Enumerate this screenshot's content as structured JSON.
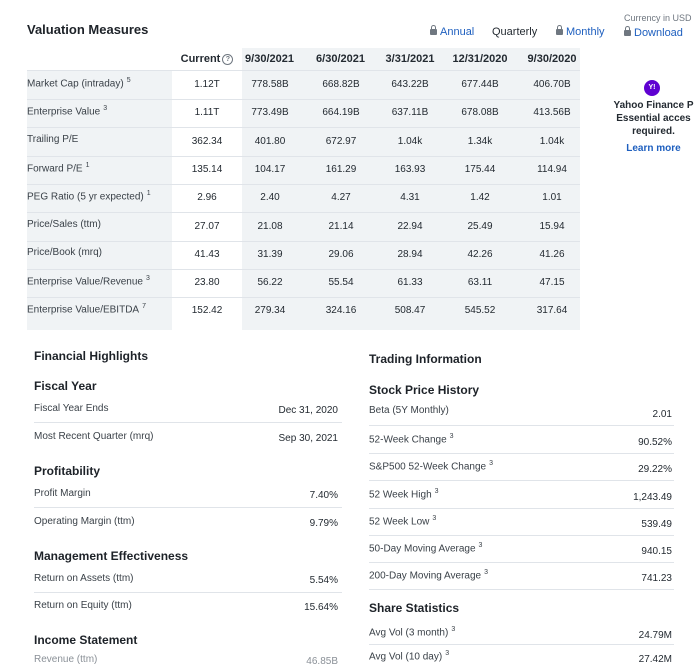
{
  "valuation": {
    "title": "Valuation Measures",
    "toggles": {
      "annual": "Annual",
      "quarterly": "Quarterly",
      "monthly": "Monthly"
    },
    "currency": "Currency in USD",
    "download": "Download",
    "columns": [
      "Current",
      "9/30/2021",
      "6/30/2021",
      "3/31/2021",
      "12/31/2020",
      "9/30/2020"
    ],
    "rows": [
      {
        "label": "Market Cap (intraday)",
        "sup": "5",
        "values": [
          "1.12T",
          "778.58B",
          "668.82B",
          "643.22B",
          "677.44B",
          "406.70B"
        ]
      },
      {
        "label": "Enterprise Value",
        "sup": "3",
        "values": [
          "1.11T",
          "773.49B",
          "664.19B",
          "637.11B",
          "678.08B",
          "413.56B"
        ]
      },
      {
        "label": "Trailing P/E",
        "sup": "",
        "values": [
          "362.34",
          "401.80",
          "672.97",
          "1.04k",
          "1.34k",
          "1.04k"
        ]
      },
      {
        "label": "Forward P/E",
        "sup": "1",
        "values": [
          "135.14",
          "104.17",
          "161.29",
          "163.93",
          "175.44",
          "114.94"
        ]
      },
      {
        "label": "PEG Ratio (5 yr expected)",
        "sup": "1",
        "values": [
          "2.96",
          "2.40",
          "4.27",
          "4.31",
          "1.42",
          "1.01"
        ]
      },
      {
        "label": "Price/Sales (ttm)",
        "sup": "",
        "values": [
          "27.07",
          "21.08",
          "21.14",
          "22.94",
          "25.49",
          "15.94"
        ]
      },
      {
        "label": "Price/Book (mrq)",
        "sup": "",
        "values": [
          "41.43",
          "31.39",
          "29.06",
          "28.94",
          "42.26",
          "41.26"
        ]
      },
      {
        "label": "Enterprise Value/Revenue",
        "sup": "3",
        "values": [
          "23.80",
          "56.22",
          "55.54",
          "61.33",
          "63.11",
          "47.15"
        ]
      },
      {
        "label": "Enterprise Value/EBITDA",
        "sup": "7",
        "values": [
          "152.42",
          "279.34",
          "324.16",
          "508.47",
          "545.52",
          "317.64"
        ]
      }
    ]
  },
  "promo": {
    "badge": "Y!",
    "line1": "Yahoo Finance P",
    "line2": "Essential acces",
    "line3": "required.",
    "link": "Learn more"
  },
  "financial": {
    "title": "Financial Highlights",
    "fiscal_year": {
      "title": "Fiscal Year",
      "rows": [
        {
          "label": "Fiscal Year Ends",
          "value": "Dec 31, 2020"
        },
        {
          "label": "Most Recent Quarter (mrq)",
          "value": "Sep 30, 2021"
        }
      ]
    },
    "profitability": {
      "title": "Profitability",
      "rows": [
        {
          "label": "Profit Margin",
          "value": "7.40%"
        },
        {
          "label": "Operating Margin (ttm)",
          "value": "9.79%"
        }
      ]
    },
    "management": {
      "title": "Management Effectiveness",
      "rows": [
        {
          "label": "Return on Assets (ttm)",
          "value": "5.54%"
        },
        {
          "label": "Return on Equity (ttm)",
          "value": "15.64%"
        }
      ]
    },
    "income": {
      "title": "Income Statement",
      "partial_label": "Revenue (ttm)",
      "partial_value": "46.85B"
    }
  },
  "trading": {
    "title": "Trading Information",
    "stock_history": {
      "title": "Stock Price History",
      "rows": [
        {
          "label": "Beta (5Y Monthly)",
          "sup": "",
          "value": "2.01"
        },
        {
          "label": "52-Week Change",
          "sup": "3",
          "value": "90.52%"
        },
        {
          "label": "S&P500 52-Week Change",
          "sup": "3",
          "value": "29.22%"
        },
        {
          "label": "52 Week High",
          "sup": "3",
          "value": "1,243.49"
        },
        {
          "label": "52 Week Low",
          "sup": "3",
          "value": "539.49"
        },
        {
          "label": "50-Day Moving Average",
          "sup": "3",
          "value": "940.15"
        },
        {
          "label": "200-Day Moving Average",
          "sup": "3",
          "value": "741.23"
        }
      ]
    },
    "share_stats": {
      "title": "Share Statistics",
      "rows": [
        {
          "label": "Avg Vol (3 month)",
          "sup": "3",
          "value": "24.79M"
        },
        {
          "label": "Avg Vol (10 day)",
          "sup": "3",
          "value": "27.42M"
        }
      ]
    }
  }
}
